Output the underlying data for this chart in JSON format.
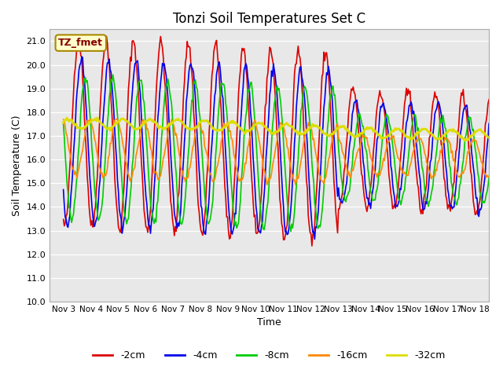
{
  "title": "Tonzi Soil Temperatures Set C",
  "xlabel": "Time",
  "ylabel": "Soil Temperature (C)",
  "ylim": [
    10.0,
    21.5
  ],
  "yticks": [
    10.0,
    11.0,
    12.0,
    13.0,
    14.0,
    15.0,
    16.0,
    17.0,
    18.0,
    19.0,
    20.0,
    21.0
  ],
  "xtick_labels": [
    "Nov 3",
    "Nov 4",
    "Nov 5",
    "Nov 6",
    "Nov 7",
    "Nov 8",
    "Nov 9",
    "Nov 10",
    "Nov 11",
    "Nov 12",
    "Nov 13",
    "Nov 14",
    "Nov 15",
    "Nov 16",
    "Nov 17",
    "Nov 18"
  ],
  "colors": {
    "-2cm": "#dd0000",
    "-4cm": "#0000ee",
    "-8cm": "#00cc00",
    "-16cm": "#ff8800",
    "-32cm": "#dddd00"
  },
  "legend_labels": [
    "-2cm",
    "-4cm",
    "-8cm",
    "-16cm",
    "-32cm"
  ],
  "annotation_text": "TZ_fmet",
  "annotation_bg": "#ffffcc",
  "annotation_border": "#aa8800",
  "plot_bg": "#e8e8e8"
}
